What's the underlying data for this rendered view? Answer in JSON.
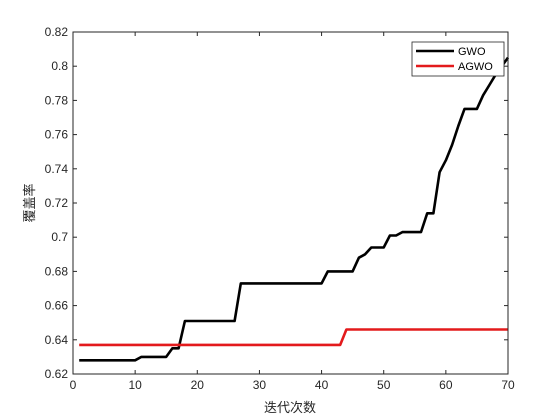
{
  "chart_data": {
    "type": "line",
    "title": "",
    "xlabel": "迭代次数",
    "ylabel": "覆盖率",
    "xlim": [
      0,
      70
    ],
    "ylim": [
      0.62,
      0.82
    ],
    "xticks": [
      0,
      10,
      20,
      30,
      40,
      50,
      60,
      70
    ],
    "yticks": [
      0.62,
      0.64,
      0.66,
      0.68,
      0.7,
      0.72,
      0.74,
      0.76,
      0.78,
      0.8,
      0.82
    ],
    "grid": false,
    "legend_position": "top-right",
    "series": [
      {
        "name": "GWO",
        "color": "#000000",
        "points": [
          [
            1,
            0.628
          ],
          [
            10,
            0.628
          ],
          [
            11,
            0.63
          ],
          [
            15,
            0.63
          ],
          [
            16,
            0.635
          ],
          [
            17,
            0.635
          ],
          [
            18,
            0.651
          ],
          [
            26,
            0.651
          ],
          [
            27,
            0.673
          ],
          [
            40,
            0.673
          ],
          [
            41,
            0.68
          ],
          [
            45,
            0.68
          ],
          [
            46,
            0.688
          ],
          [
            47,
            0.69
          ],
          [
            48,
            0.694
          ],
          [
            50,
            0.694
          ],
          [
            51,
            0.701
          ],
          [
            52,
            0.701
          ],
          [
            53,
            0.703
          ],
          [
            56,
            0.703
          ],
          [
            57,
            0.714
          ],
          [
            58,
            0.714
          ],
          [
            59,
            0.738
          ],
          [
            60,
            0.745
          ],
          [
            61,
            0.754
          ],
          [
            62,
            0.765
          ],
          [
            63,
            0.775
          ],
          [
            65,
            0.775
          ],
          [
            66,
            0.783
          ],
          [
            67,
            0.789
          ],
          [
            68,
            0.795
          ],
          [
            69,
            0.8
          ],
          [
            70,
            0.805
          ]
        ]
      },
      {
        "name": "AGWO",
        "color": "#e31a1c",
        "points": [
          [
            1,
            0.637
          ],
          [
            43,
            0.637
          ],
          [
            44,
            0.646
          ],
          [
            70,
            0.646
          ]
        ]
      }
    ]
  }
}
